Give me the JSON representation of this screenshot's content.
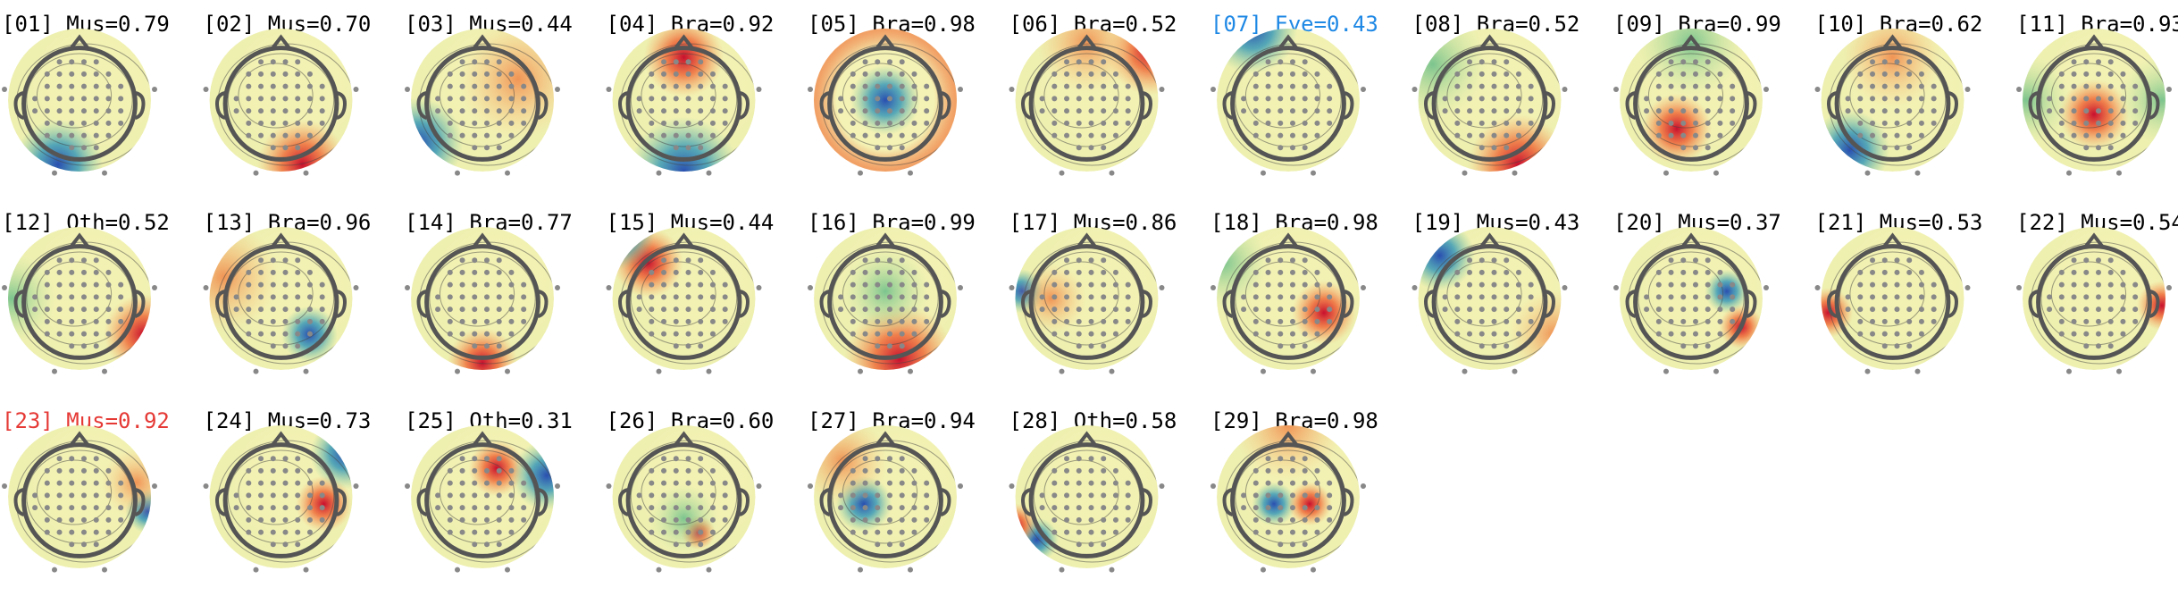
{
  "components": [
    {
      "label": "[01] Mus=0.79",
      "color": "#000000"
    },
    {
      "label": "[02] Mus=0.70",
      "color": "#000000"
    },
    {
      "label": "[03] Mus=0.44",
      "color": "#000000"
    },
    {
      "label": "[04] Bra=0.92",
      "color": "#000000"
    },
    {
      "label": "[05] Bra=0.98",
      "color": "#000000"
    },
    {
      "label": "[06] Bra=0.52",
      "color": "#000000"
    },
    {
      "label": "[07] Eye=0.43",
      "color": "#1e88e5"
    },
    {
      "label": "[08] Bra=0.52",
      "color": "#000000"
    },
    {
      "label": "[09] Bra=0.99",
      "color": "#000000"
    },
    {
      "label": "[10] Bra=0.62",
      "color": "#000000"
    },
    {
      "label": "[11] Bra=0.93",
      "color": "#000000"
    },
    {
      "label": "[12] Oth=0.52",
      "color": "#000000"
    },
    {
      "label": "[13] Bra=0.96",
      "color": "#000000"
    },
    {
      "label": "[14] Bra=0.77",
      "color": "#000000"
    },
    {
      "label": "[15] Mus=0.44",
      "color": "#000000"
    },
    {
      "label": "[16] Bra=0.99",
      "color": "#000000"
    },
    {
      "label": "[17] Mus=0.86",
      "color": "#000000"
    },
    {
      "label": "[18] Bra=0.98",
      "color": "#000000"
    },
    {
      "label": "[19] Mus=0.43",
      "color": "#000000"
    },
    {
      "label": "[20] Mus=0.37",
      "color": "#000000"
    },
    {
      "label": "[21] Mus=0.53",
      "color": "#000000"
    },
    {
      "label": "[22] Mus=0.54",
      "color": "#000000"
    },
    {
      "label": "[23] Mus=0.92",
      "color": "#e53935"
    },
    {
      "label": "[24] Mus=0.73",
      "color": "#000000"
    },
    {
      "label": "[25] Oth=0.31",
      "color": "#000000"
    },
    {
      "label": "[26] Bra=0.60",
      "color": "#000000"
    },
    {
      "label": "[27] Bra=0.94",
      "color": "#000000"
    },
    {
      "label": "[28] Oth=0.58",
      "color": "#000000"
    },
    {
      "label": "[29] Bra=0.98",
      "color": "#000000"
    }
  ]
}
